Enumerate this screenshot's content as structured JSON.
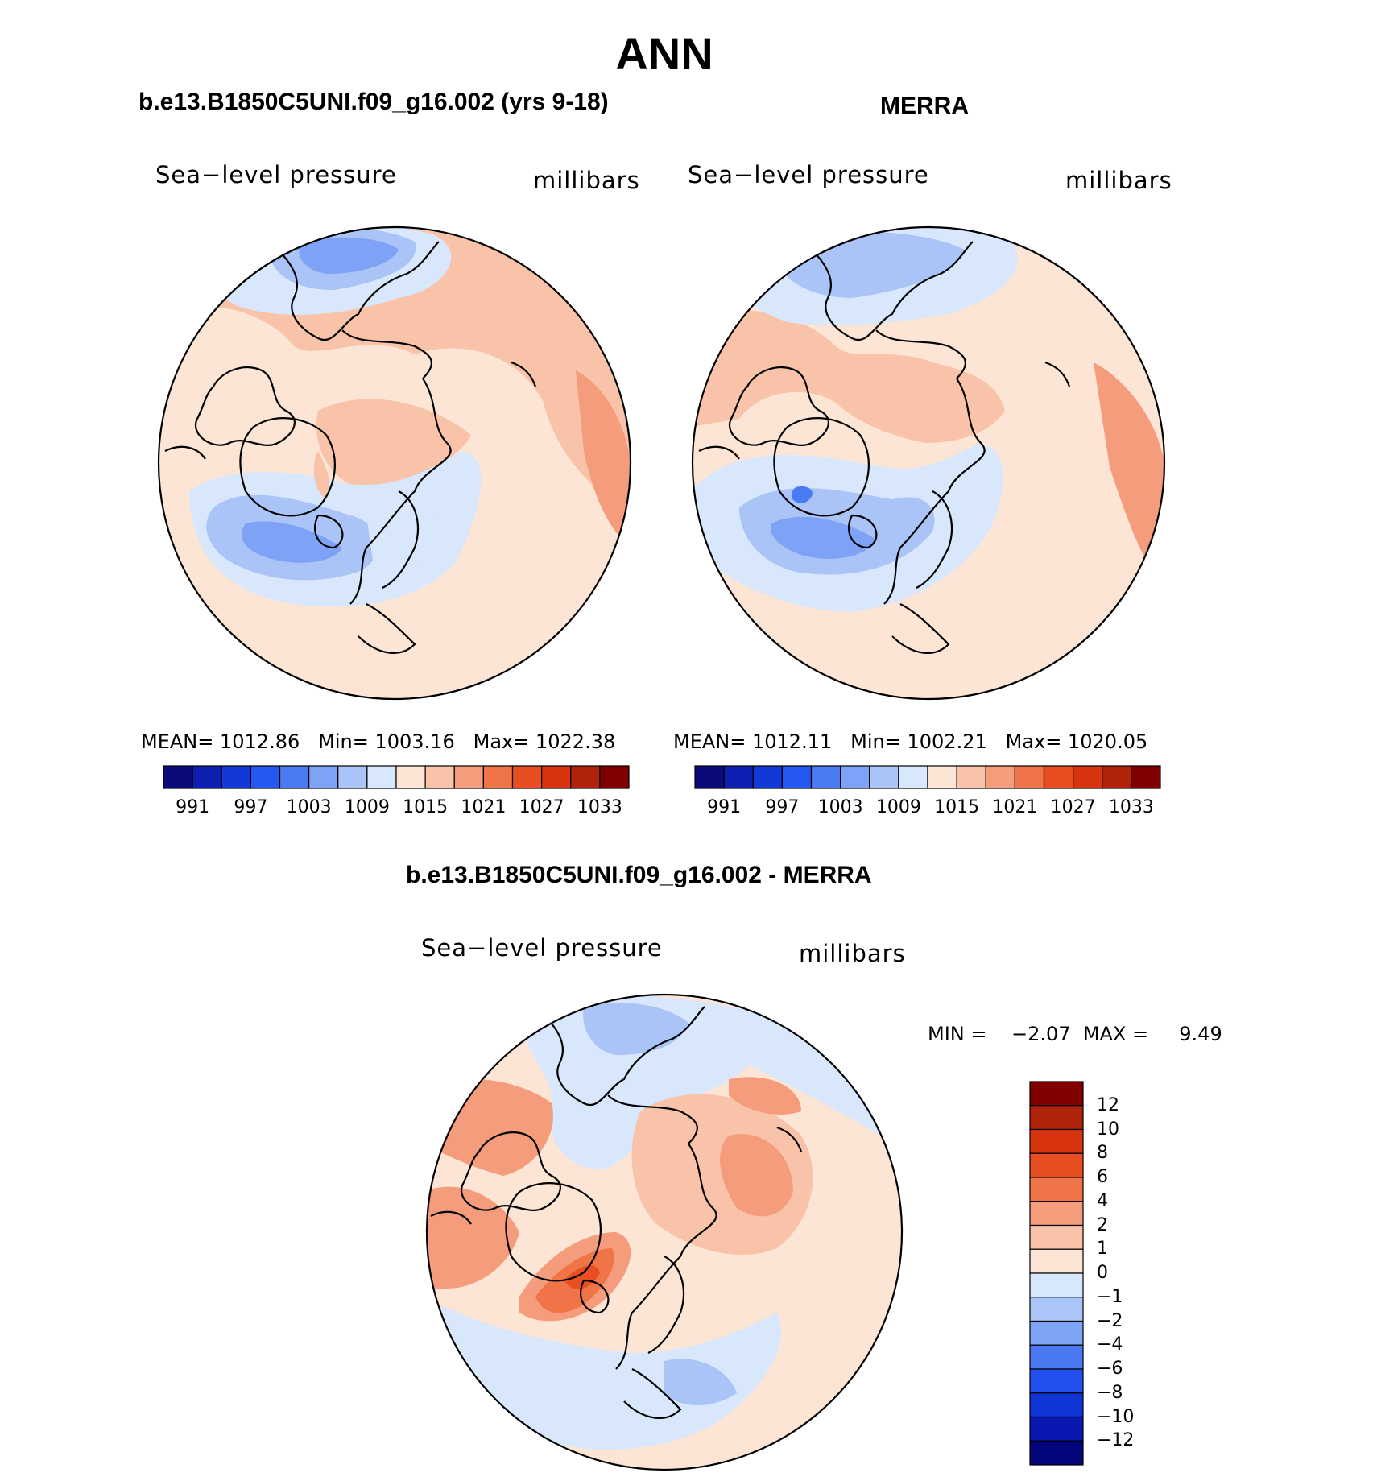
{
  "title": "ANN",
  "palette_abs": [
    "#0a0a7a",
    "#0c1fb0",
    "#1238d6",
    "#2458f0",
    "#4a7bf2",
    "#7ea2f5",
    "#aac4f7",
    "#d8e7fb",
    "#fde5d5",
    "#f8c3a8",
    "#f49c7c",
    "#ef7549",
    "#e94e22",
    "#d73410",
    "#b02209",
    "#800000"
  ],
  "palette_diff": [
    "#04057a",
    "#0a18b0",
    "#1035d6",
    "#2250ef",
    "#4a78f2",
    "#7ea5f5",
    "#aac6f8",
    "#d8e8fc",
    "#fde5d5",
    "#f8c3a8",
    "#f49c7c",
    "#ef7549",
    "#e94e22",
    "#d73410",
    "#b02209",
    "#800000"
  ],
  "panels": [
    {
      "title": "b.e13.B1850C5UNI.f09_g16.002 (yrs 9-18)",
      "variable": "Sea−level pressure",
      "units": "millibars",
      "stats": {
        "mean_label": "MEAN=",
        "mean": "1012.86",
        "min_label": "Min=",
        "min": "1003.16",
        "max_label": "Max=",
        "max": "1022.38"
      },
      "ticks": [
        "991",
        "997",
        "1003",
        "1009",
        "1015",
        "1021",
        "1027",
        "1033"
      ]
    },
    {
      "title": "MERRA",
      "variable": "Sea−level pressure",
      "units": "millibars",
      "stats": {
        "mean_label": "MEAN=",
        "mean": "1012.11",
        "min_label": "Min=",
        "min": "1002.21",
        "max_label": "Max=",
        "max": "1020.05"
      },
      "ticks": [
        "991",
        "997",
        "1003",
        "1009",
        "1015",
        "1021",
        "1027",
        "1033"
      ]
    }
  ],
  "difference": {
    "title": "b.e13.B1850C5UNI.f09_g16.002 - MERRA",
    "variable": "Sea−level pressure",
    "units": "millibars",
    "min_label": "MIN =",
    "min": "−2.07",
    "max_label": "MAX =",
    "max": "9.49",
    "ticks": [
      "12",
      "10",
      "8",
      "6",
      "4",
      "2",
      "1",
      "0",
      "−1",
      "−2",
      "−4",
      "−6",
      "−8",
      "−10",
      "−12"
    ]
  }
}
